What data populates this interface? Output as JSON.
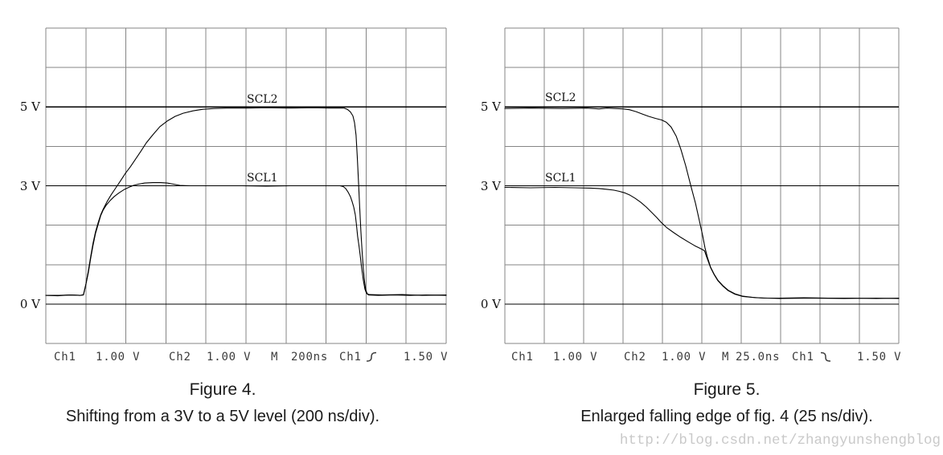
{
  "page": {
    "background": "#ffffff",
    "watermark_text": "http://blog.csdn.net/zhangyunshengblog",
    "grid_color": "#858585",
    "reference_line_color": "#000000",
    "trace_color": "#000000",
    "readout_color": "#3c3c3c",
    "watermark_color": "#c9c9c9"
  },
  "chart_data": [
    {
      "id": "figure-4",
      "type": "line",
      "title": "Figure 4.",
      "caption": "Shifting from a 3V to a 5V level (200 ns/div).",
      "time_per_div": "200 ns",
      "volts_per_div": 1.0,
      "divisions": {
        "horizontal": 10,
        "vertical": 8
      },
      "zero_volt_div_from_bottom": 1,
      "grid": true,
      "y_axis_labels": [
        {
          "label": "5 V",
          "volts": 5
        },
        {
          "label": "3 V",
          "volts": 3
        },
        {
          "label": "0 V",
          "volts": 0
        }
      ],
      "readout": {
        "ch1_label": "Ch1",
        "ch1_scale": "1.00 V",
        "ch2_label": "Ch2",
        "ch2_scale": "1.00 V",
        "m_label": "M",
        "timebase": "200ns",
        "trigger_source": "Ch1",
        "trigger_edge": "rising",
        "trigger_level": "1.50 V"
      },
      "series": [
        {
          "name": "SCL2",
          "points_xdiv_volts": [
            [
              0,
              0.22
            ],
            [
              0.3,
              0.21
            ],
            [
              0.6,
              0.23
            ],
            [
              0.86,
              0.22
            ],
            [
              0.94,
              0.24
            ],
            [
              1.0,
              0.5
            ],
            [
              1.06,
              0.83
            ],
            [
              1.12,
              1.2
            ],
            [
              1.18,
              1.55
            ],
            [
              1.24,
              1.83
            ],
            [
              1.31,
              2.07
            ],
            [
              1.37,
              2.26
            ],
            [
              1.43,
              2.4
            ],
            [
              1.53,
              2.6
            ],
            [
              1.63,
              2.77
            ],
            [
              1.75,
              2.95
            ],
            [
              1.87,
              3.13
            ],
            [
              1.99,
              3.32
            ],
            [
              2.11,
              3.48
            ],
            [
              2.23,
              3.66
            ],
            [
              2.37,
              3.87
            ],
            [
              2.51,
              4.09
            ],
            [
              2.67,
              4.29
            ],
            [
              2.85,
              4.5
            ],
            [
              3.03,
              4.64
            ],
            [
              3.23,
              4.76
            ],
            [
              3.43,
              4.84
            ],
            [
              3.67,
              4.9
            ],
            [
              3.92,
              4.94
            ],
            [
              4.2,
              4.96
            ],
            [
              4.52,
              4.97
            ],
            [
              5.0,
              4.97
            ],
            [
              5.5,
              4.98
            ],
            [
              6.1,
              4.97
            ],
            [
              6.7,
              4.98
            ],
            [
              7.1,
              4.97
            ],
            [
              7.45,
              4.97
            ],
            [
              7.53,
              4.94
            ],
            [
              7.61,
              4.87
            ],
            [
              7.67,
              4.77
            ],
            [
              7.71,
              4.6
            ],
            [
              7.75,
              4.28
            ],
            [
              7.78,
              3.74
            ],
            [
              7.81,
              3.12
            ],
            [
              7.84,
              2.46
            ],
            [
              7.87,
              1.85
            ],
            [
              7.9,
              1.34
            ],
            [
              7.93,
              0.91
            ],
            [
              7.96,
              0.59
            ],
            [
              7.99,
              0.36
            ],
            [
              8.03,
              0.26
            ],
            [
              8.08,
              0.24
            ],
            [
              8.4,
              0.23
            ],
            [
              8.9,
              0.24
            ],
            [
              9.4,
              0.22
            ],
            [
              10,
              0.23
            ]
          ]
        },
        {
          "name": "SCL1",
          "points_xdiv_volts": [
            [
              0,
              0.22
            ],
            [
              0.33,
              0.22
            ],
            [
              0.62,
              0.23
            ],
            [
              0.86,
              0.22
            ],
            [
              0.94,
              0.23
            ],
            [
              1.0,
              0.49
            ],
            [
              1.06,
              0.79
            ],
            [
              1.12,
              1.16
            ],
            [
              1.18,
              1.5
            ],
            [
              1.24,
              1.79
            ],
            [
              1.31,
              2.03
            ],
            [
              1.37,
              2.24
            ],
            [
              1.43,
              2.38
            ],
            [
              1.51,
              2.51
            ],
            [
              1.61,
              2.63
            ],
            [
              1.71,
              2.73
            ],
            [
              1.83,
              2.82
            ],
            [
              1.95,
              2.9
            ],
            [
              2.07,
              2.96
            ],
            [
              2.19,
              3.01
            ],
            [
              2.31,
              3.04
            ],
            [
              2.47,
              3.07
            ],
            [
              2.67,
              3.08
            ],
            [
              2.87,
              3.08
            ],
            [
              3.03,
              3.07
            ],
            [
              3.19,
              3.04
            ],
            [
              3.35,
              3.01
            ],
            [
              3.6,
              3.0
            ],
            [
              4.1,
              3.0
            ],
            [
              4.9,
              3.0
            ],
            [
              5.5,
              2.99
            ],
            [
              6.1,
              3.0
            ],
            [
              6.7,
              3.0
            ],
            [
              7.1,
              3.0
            ],
            [
              7.35,
              3.0
            ],
            [
              7.43,
              2.98
            ],
            [
              7.49,
              2.93
            ],
            [
              7.55,
              2.84
            ],
            [
              7.61,
              2.72
            ],
            [
              7.65,
              2.6
            ],
            [
              7.69,
              2.46
            ],
            [
              7.73,
              2.26
            ],
            [
              7.76,
              2.01
            ],
            [
              7.79,
              1.71
            ],
            [
              7.82,
              1.5
            ],
            [
              7.85,
              1.26
            ],
            [
              7.89,
              0.91
            ],
            [
              7.93,
              0.61
            ],
            [
              7.97,
              0.38
            ],
            [
              8.01,
              0.27
            ],
            [
              8.06,
              0.23
            ],
            [
              8.3,
              0.22
            ],
            [
              8.7,
              0.23
            ],
            [
              9.1,
              0.22
            ],
            [
              9.5,
              0.23
            ],
            [
              10,
              0.22
            ]
          ]
        }
      ]
    },
    {
      "id": "figure-5",
      "type": "line",
      "title": "Figure 5.",
      "caption": "Enlarged falling edge of fig. 4 (25 ns/div).",
      "time_per_div": "25 ns",
      "volts_per_div": 1.0,
      "divisions": {
        "horizontal": 10,
        "vertical": 8
      },
      "zero_volt_div_from_bottom": 1,
      "grid": true,
      "y_axis_labels": [
        {
          "label": "5 V",
          "volts": 5
        },
        {
          "label": "3 V",
          "volts": 3
        },
        {
          "label": "0 V",
          "volts": 0
        }
      ],
      "readout": {
        "ch1_label": "Ch1",
        "ch1_scale": "1.00 V",
        "ch2_label": "Ch2",
        "ch2_scale": "1.00 V",
        "m_label": "M",
        "timebase": "25.0ns",
        "trigger_source": "Ch1",
        "trigger_edge": "falling",
        "trigger_level": "1.50 V"
      },
      "series": [
        {
          "name": "SCL2",
          "points_xdiv_volts": [
            [
              0,
              4.96
            ],
            [
              0.65,
              4.97
            ],
            [
              1.47,
              4.96
            ],
            [
              2.08,
              4.97
            ],
            [
              2.39,
              4.95
            ],
            [
              2.59,
              4.97
            ],
            [
              2.8,
              4.96
            ],
            [
              3.0,
              4.95
            ],
            [
              3.16,
              4.93
            ],
            [
              3.33,
              4.88
            ],
            [
              3.49,
              4.82
            ],
            [
              3.65,
              4.76
            ],
            [
              3.82,
              4.71
            ],
            [
              3.98,
              4.67
            ],
            [
              4.1,
              4.61
            ],
            [
              4.22,
              4.49
            ],
            [
              4.35,
              4.26
            ],
            [
              4.47,
              3.92
            ],
            [
              4.59,
              3.51
            ],
            [
              4.71,
              3.04
            ],
            [
              4.84,
              2.55
            ],
            [
              4.94,
              2.1
            ],
            [
              5.02,
              1.74
            ],
            [
              5.08,
              1.43
            ],
            [
              5.14,
              1.19
            ],
            [
              5.22,
              0.94
            ],
            [
              5.31,
              0.76
            ],
            [
              5.41,
              0.6
            ],
            [
              5.53,
              0.47
            ],
            [
              5.67,
              0.35
            ],
            [
              5.84,
              0.26
            ],
            [
              6.04,
              0.2
            ],
            [
              6.29,
              0.17
            ],
            [
              6.57,
              0.15
            ],
            [
              6.98,
              0.15
            ],
            [
              7.59,
              0.16
            ],
            [
              8.2,
              0.15
            ],
            [
              8.82,
              0.15
            ],
            [
              9.43,
              0.14
            ],
            [
              10,
              0.15
            ]
          ]
        },
        {
          "name": "SCL1",
          "points_xdiv_volts": [
            [
              0,
              2.96
            ],
            [
              0.65,
              2.95
            ],
            [
              1.27,
              2.96
            ],
            [
              1.78,
              2.95
            ],
            [
              2.18,
              2.94
            ],
            [
              2.39,
              2.93
            ],
            [
              2.59,
              2.91
            ],
            [
              2.76,
              2.89
            ],
            [
              2.9,
              2.86
            ],
            [
              3.04,
              2.82
            ],
            [
              3.18,
              2.76
            ],
            [
              3.31,
              2.68
            ],
            [
              3.45,
              2.58
            ],
            [
              3.59,
              2.46
            ],
            [
              3.73,
              2.32
            ],
            [
              3.86,
              2.19
            ],
            [
              3.98,
              2.06
            ],
            [
              4.12,
              1.93
            ],
            [
              4.29,
              1.81
            ],
            [
              4.47,
              1.69
            ],
            [
              4.65,
              1.58
            ],
            [
              4.82,
              1.48
            ],
            [
              4.94,
              1.42
            ],
            [
              5.02,
              1.38
            ],
            [
              5.07,
              1.35
            ],
            [
              5.12,
              1.2
            ],
            [
              5.22,
              0.93
            ],
            [
              5.31,
              0.75
            ],
            [
              5.41,
              0.59
            ],
            [
              5.53,
              0.46
            ],
            [
              5.67,
              0.34
            ],
            [
              5.84,
              0.25
            ],
            [
              6.04,
              0.19
            ],
            [
              6.37,
              0.16
            ],
            [
              6.98,
              0.14
            ],
            [
              7.8,
              0.15
            ],
            [
              8.61,
              0.14
            ],
            [
              9.43,
              0.15
            ],
            [
              10,
              0.14
            ]
          ]
        }
      ]
    }
  ]
}
